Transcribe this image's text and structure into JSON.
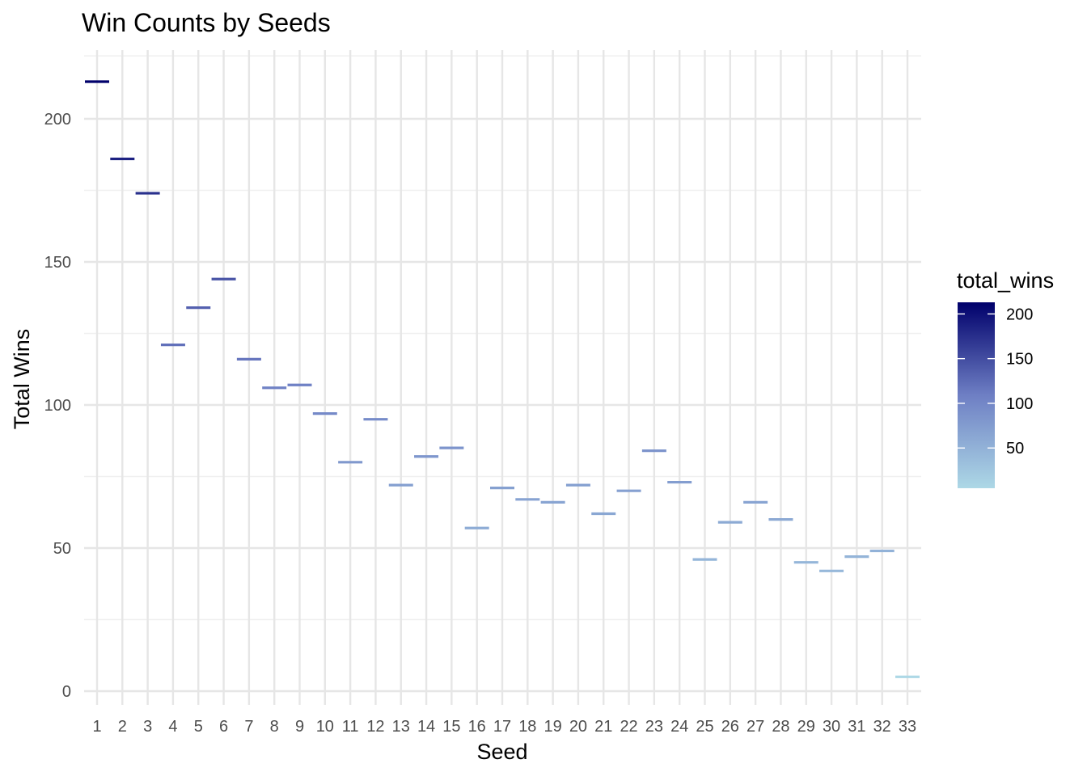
{
  "chart_data": {
    "type": "bar",
    "title": "Win Counts by Seeds",
    "xlabel": "Seed",
    "ylabel": "Total Wins",
    "categories": [
      "1",
      "2",
      "3",
      "4",
      "5",
      "6",
      "7",
      "8",
      "9",
      "10",
      "11",
      "12",
      "13",
      "14",
      "15",
      "16",
      "17",
      "18",
      "19",
      "20",
      "21",
      "22",
      "23",
      "24",
      "25",
      "26",
      "27",
      "28",
      "29",
      "30",
      "31",
      "32",
      "33"
    ],
    "values": [
      213,
      186,
      174,
      121,
      134,
      144,
      116,
      106,
      107,
      97,
      80,
      95,
      72,
      82,
      85,
      57,
      71,
      67,
      66,
      72,
      62,
      70,
      84,
      73,
      46,
      59,
      66,
      60,
      45,
      42,
      47,
      49,
      5
    ],
    "ylim": [
      0,
      222
    ],
    "yticks": [
      "0",
      "50",
      "100",
      "150",
      "200"
    ],
    "grid": true,
    "legend": {
      "title": "total_wins",
      "placement": "right",
      "ticks": [
        "50",
        "100",
        "150",
        "200"
      ],
      "range": [
        5,
        213
      ],
      "color_low": "#add8e6",
      "color_high": "#00006b"
    }
  }
}
